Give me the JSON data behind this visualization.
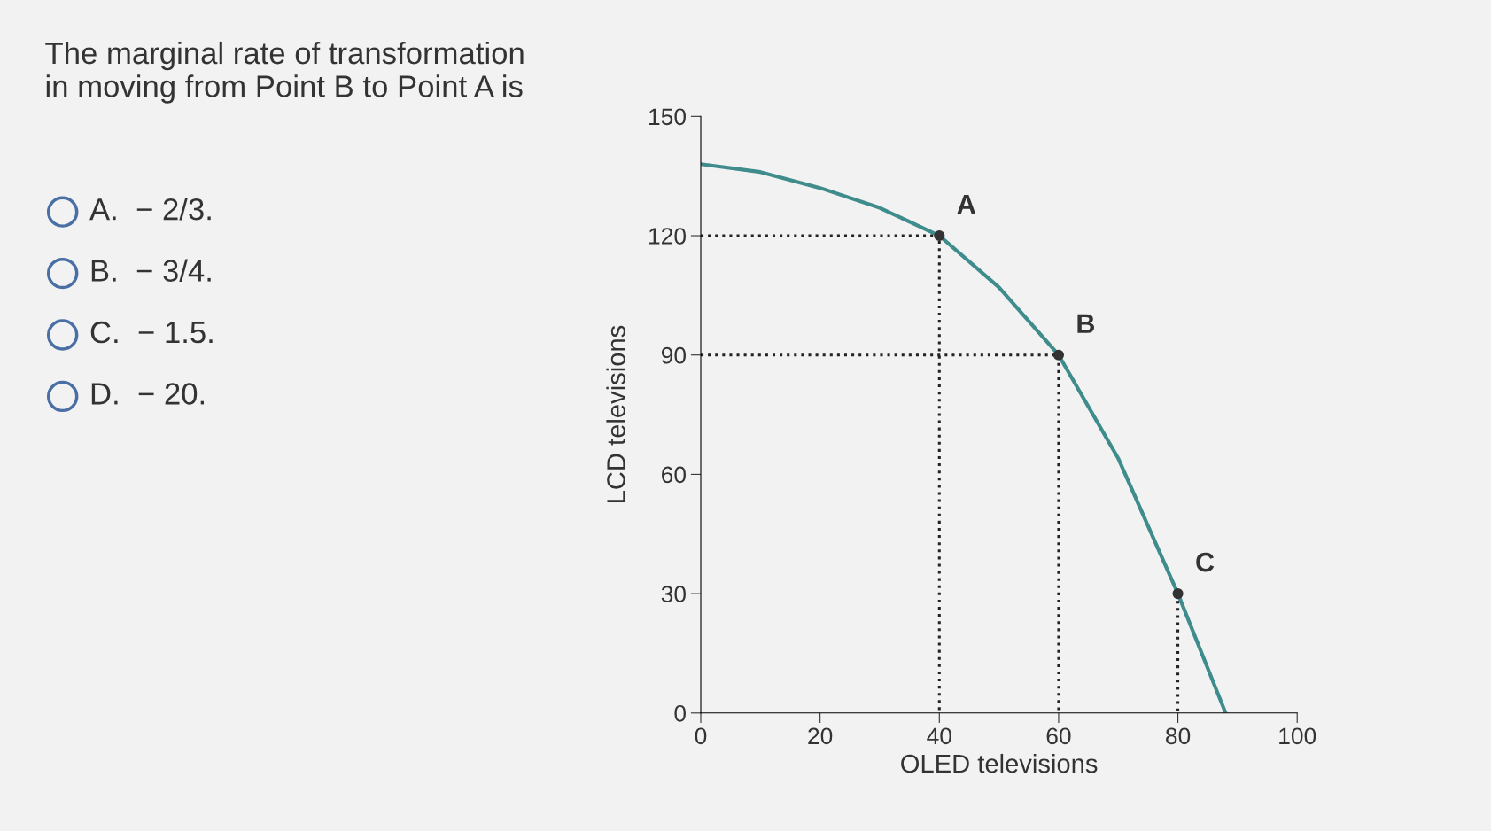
{
  "chart_data": {
    "type": "line",
    "xlabel": "OLED televisions",
    "ylabel": "LCD televisions",
    "xlim": [
      0,
      100
    ],
    "ylim": [
      0,
      150
    ],
    "xticks": [
      0,
      20,
      40,
      60,
      80,
      100
    ],
    "yticks": [
      0,
      30,
      60,
      90,
      120,
      150
    ],
    "grid": false,
    "legend": false,
    "series": [
      {
        "color": "#3f8c8c",
        "x": [
          0,
          10,
          20,
          30,
          40,
          50,
          60,
          70,
          80,
          88
        ],
        "values": [
          138,
          136,
          132,
          127,
          120,
          107,
          90,
          64,
          30,
          0
        ],
        "marker": "none",
        "line_style": "solid"
      },
      {
        "type": "line",
        "color": "#222222",
        "x": [
          0,
          40,
          40
        ],
        "values": [
          120,
          120,
          0
        ],
        "marker": "none",
        "line_style": "dotted"
      },
      {
        "type": "line",
        "color": "#222222",
        "x": [
          0,
          60,
          60
        ],
        "values": [
          90,
          90,
          0
        ],
        "marker": "none",
        "line_style": "dotted"
      },
      {
        "type": "line",
        "color": "#222222",
        "x": [
          80,
          80
        ],
        "values": [
          30,
          0
        ],
        "marker": "none",
        "line_style": "dotted"
      },
      {
        "type": "scatter",
        "color": "#333333",
        "x": [
          40,
          60,
          80
        ],
        "values": [
          120,
          90,
          30
        ],
        "marker": "circle"
      }
    ],
    "annotations": [
      {
        "text": "A",
        "x": 40,
        "y": 120
      },
      {
        "text": "B",
        "x": 60,
        "y": 90
      },
      {
        "text": "C",
        "x": 80,
        "y": 30
      },
      "The marginal rate of transformation in moving from Point B to Point A is",
      "A.  − 2/3.",
      "B.  − 3/4.",
      "C.  − 1.5.",
      "D.  − 20."
    ]
  }
}
